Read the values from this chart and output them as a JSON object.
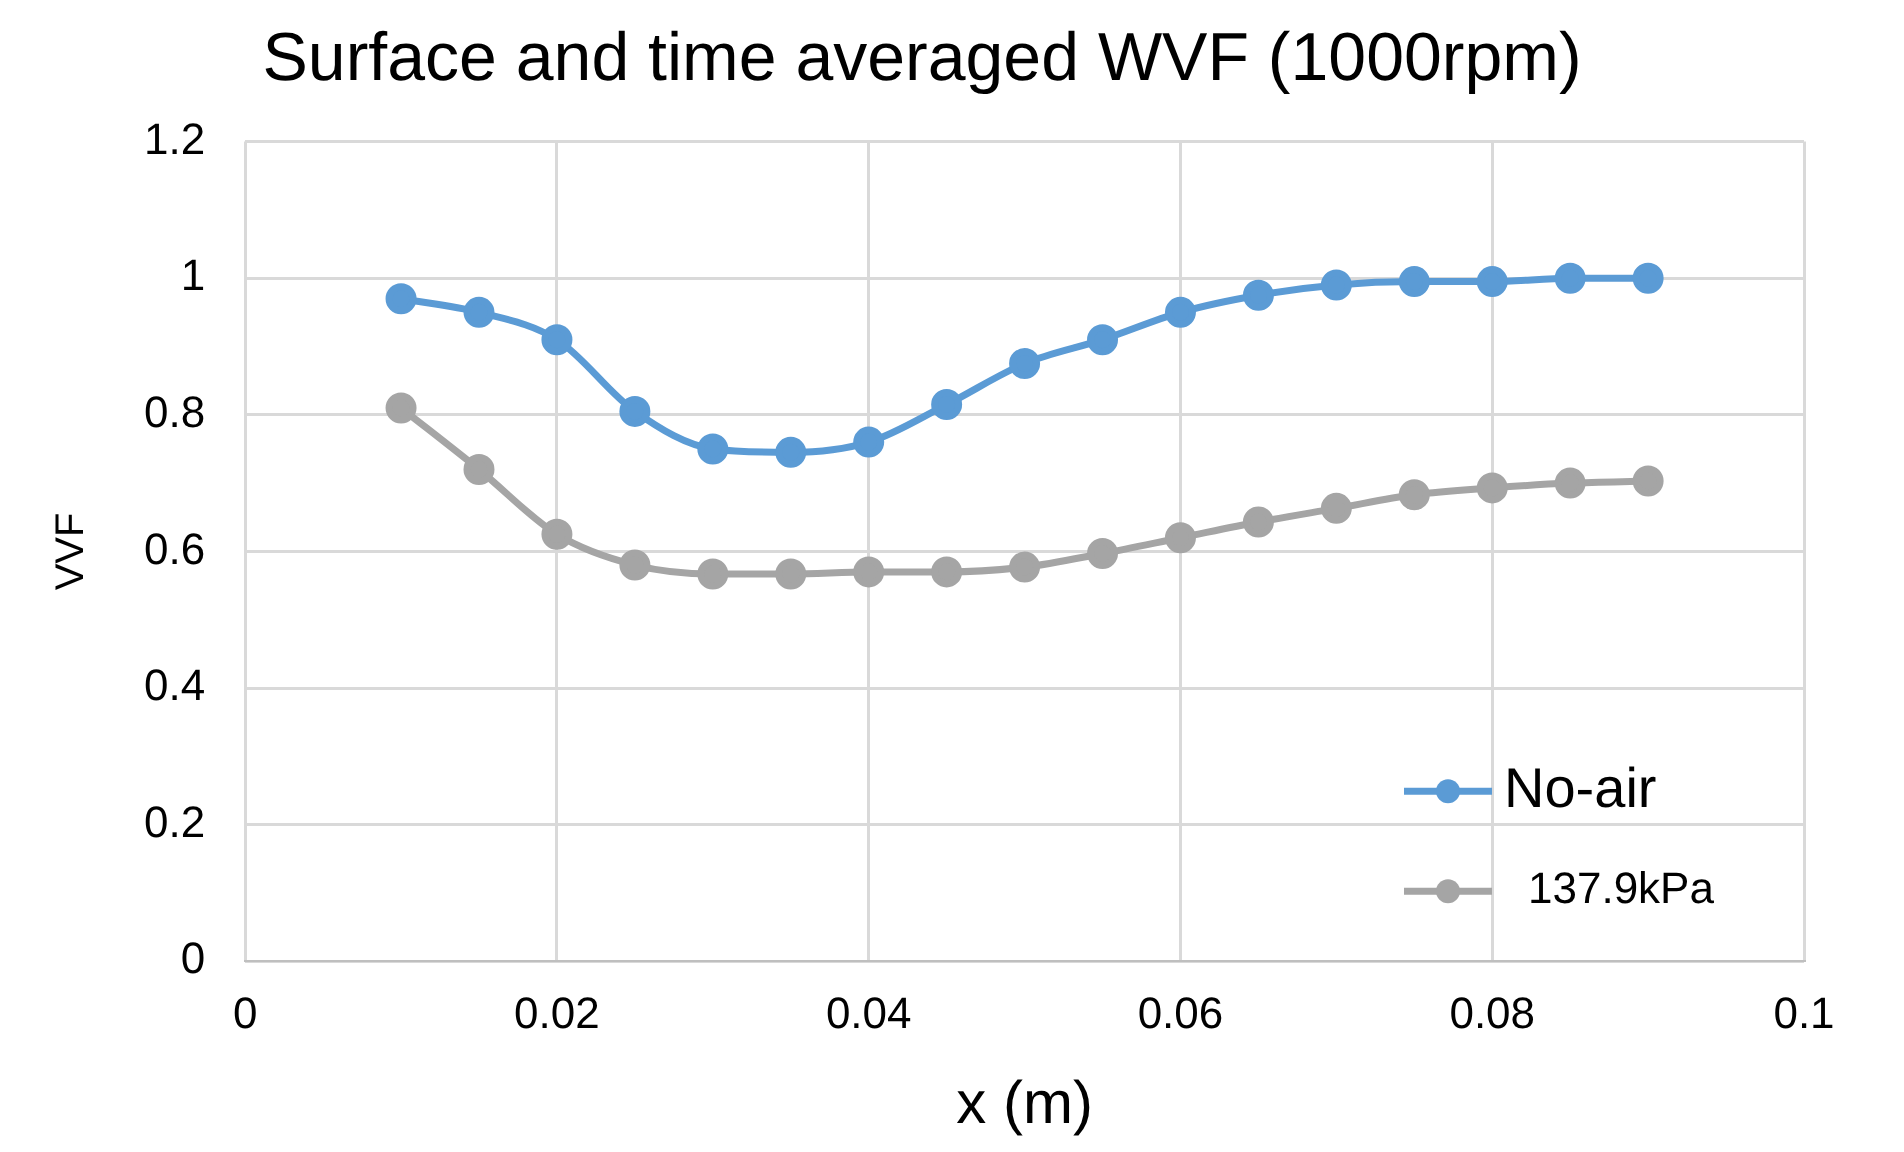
{
  "chart_data": {
    "type": "line",
    "title": "Surface and time averaged WVF (1000rpm)",
    "xlabel": "x (m)",
    "ylabel": "VVF",
    "x": [
      0.01,
      0.015,
      0.02,
      0.025,
      0.03,
      0.035,
      0.04,
      0.045,
      0.05,
      0.055,
      0.06,
      0.065,
      0.07,
      0.075,
      0.08,
      0.085,
      0.09
    ],
    "series": [
      {
        "name": "No-air",
        "color": "#5b9bd5",
        "values": [
          0.97,
          0.95,
          0.91,
          0.805,
          0.75,
          0.745,
          0.76,
          0.815,
          0.875,
          0.91,
          0.95,
          0.975,
          0.99,
          0.995,
          0.995,
          1.0,
          1.0
        ]
      },
      {
        "name": "137.9kPa",
        "color": "#a5a5a5",
        "values": [
          0.81,
          0.72,
          0.625,
          0.58,
          0.567,
          0.567,
          0.57,
          0.57,
          0.577,
          0.597,
          0.62,
          0.643,
          0.663,
          0.683,
          0.693,
          0.7,
          0.703
        ]
      }
    ],
    "xlim": [
      0,
      0.1
    ],
    "xticks": [
      0,
      0.02,
      0.04,
      0.06,
      0.08,
      0.1
    ],
    "ylim": [
      0,
      1.2
    ],
    "yticks": [
      0,
      0.2,
      0.4,
      0.6,
      0.8,
      1,
      1.2
    ],
    "grid": true,
    "legend": "bottom right",
    "marker": "circle",
    "line_style": "solid"
  }
}
